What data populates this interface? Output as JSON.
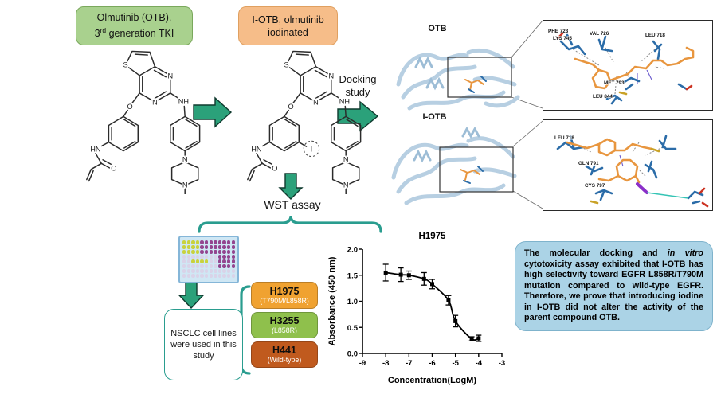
{
  "header": {
    "otb_box": {
      "line1": "Olmutinib (OTB),",
      "line2_num": "3",
      "line2_sup": "rd",
      "line2_rest": " generation TKI"
    },
    "iotb_box": {
      "line1": "I-OTB, olmutinib",
      "line2": "iodinated"
    }
  },
  "structures": {
    "atoms": {
      "s": "S",
      "n1": "N",
      "n2": "N",
      "o_ether": "O",
      "amide_hn": "HN",
      "carbonyl_o": "O",
      "aniline_nh": "NH",
      "pip_n1": "N",
      "pip_n2": "N",
      "iodine": "I"
    }
  },
  "docking": {
    "arrow_label_line1": "Docking",
    "arrow_label_line2": "study",
    "otb_label": "OTB",
    "iotb_label": "I-OTB",
    "panel_otb_residues": [
      "PHE 723",
      "VAL 726",
      "LEU 718",
      "LYS 745",
      "MET 793",
      "LEU 844"
    ],
    "panel_iotb_residues": [
      "LEU 718",
      "GLN 791",
      "CYS 797"
    ]
  },
  "wst": {
    "label": "WST assay"
  },
  "nsclc_box": {
    "text": "NSCLC cell lines were used in this study"
  },
  "cell_lines": [
    {
      "name": "H1975",
      "subtitle": "(T790M/L858R)",
      "color": "#f0a231"
    },
    {
      "name": "H3255",
      "subtitle": "(L858R)",
      "color": "#8fc04c"
    },
    {
      "name": "H441",
      "subtitle": "(Wild-type)",
      "color": "#c05a1e"
    }
  ],
  "chart_data": {
    "type": "scatter",
    "title": "H1975",
    "xlabel": "Concentration(LogM)",
    "ylabel": "Absorbance (450 nm)",
    "xlim": [
      -9,
      -3
    ],
    "ylim": [
      0,
      2
    ],
    "xticks": [
      "-9",
      "-8",
      "-7",
      "-6",
      "-5",
      "-4",
      "-3"
    ],
    "yticks": [
      "0.0",
      "0.5",
      "1.0",
      "1.5",
      "2.0"
    ],
    "grid": false,
    "legend": "none",
    "points": [
      {
        "x": -8.0,
        "y": 1.55,
        "err": 0.16
      },
      {
        "x": -7.35,
        "y": 1.51,
        "err": 0.13
      },
      {
        "x": -7.0,
        "y": 1.5,
        "err": 0.08
      },
      {
        "x": -6.35,
        "y": 1.43,
        "err": 0.12
      },
      {
        "x": -6.0,
        "y": 1.33,
        "err": 0.09
      },
      {
        "x": -5.3,
        "y": 1.02,
        "err": 0.09
      },
      {
        "x": -5.0,
        "y": 0.62,
        "err": 0.11
      },
      {
        "x": -4.3,
        "y": 0.28,
        "err": 0.04
      },
      {
        "x": -4.0,
        "y": 0.29,
        "err": 0.06
      }
    ]
  },
  "conclusion": {
    "pre": "The molecular docking and ",
    "italic": "in vitro",
    "post": " cytotoxicity assay exhibited that I-OTB has high selectivity toward EGFR L858R/T790M mutation compared to wild-type EGFR. Therefore, we prove that introducing iodine in I-OTB did not alter the activity of the parent compound OTB."
  },
  "plate": {
    "pattern": [
      "YYYYPPPPPPPP",
      "YYYYPPPPPPPP",
      "YYYYPPPPPPPP",
      "LLLLLLLLPPPP",
      "LLYYYYLLPPPP",
      "LLLLLLLLPPPP",
      "LLLLLLLLLLLL",
      "LLLLLLLLLLLL"
    ],
    "well_colors": {
      "Y": "#c9d23c",
      "P": "#93458f",
      "L": "#d9d3e8"
    }
  },
  "colors": {
    "arrow_green": "#2ba17a",
    "bracket_teal": "#2a9d8f",
    "conclusion_bg": "#abd3e6",
    "protein_ribbon": "#b7cfe2",
    "ligand_orange": "#e8963f",
    "residue_blue": "#2b6ca8"
  }
}
